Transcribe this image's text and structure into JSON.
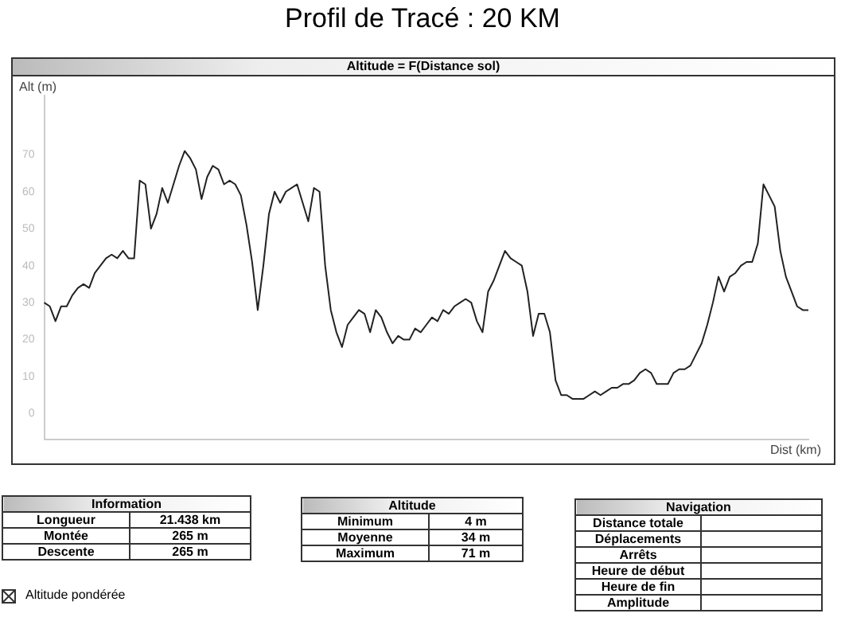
{
  "chart_data": {
    "type": "line",
    "title": "Profil de Tracé : 20 KM",
    "subtitle": "Altitude = F(Distance sol)",
    "ylabel": "Alt (m)",
    "xlabel": "Dist (km)",
    "categories": [
      null,
      null,
      null,
      null,
      null,
      null,
      null,
      null,
      null,
      null,
      null,
      null,
      null,
      null,
      null,
      null,
      null,
      null,
      null,
      null,
      null,
      null,
      null,
      null,
      null,
      null,
      null,
      null,
      null,
      null,
      null,
      null,
      null,
      null,
      null,
      null,
      null,
      null,
      null,
      null,
      null,
      null,
      null,
      null,
      null,
      null,
      null,
      null,
      null,
      null,
      null,
      null,
      null,
      null,
      null,
      null,
      null,
      null,
      null,
      null,
      null,
      null,
      null,
      null,
      null,
      null,
      null,
      null,
      null,
      null,
      null,
      null,
      null,
      null,
      null,
      null,
      null,
      null,
      null,
      null,
      null,
      null,
      null,
      null,
      null,
      null,
      null,
      null,
      null,
      null,
      null,
      null,
      null,
      null,
      null,
      null,
      null,
      null,
      null,
      null,
      null,
      null,
      null,
      null,
      null,
      null,
      null,
      null,
      null,
      null,
      null,
      null,
      null,
      null,
      null,
      null,
      null,
      null,
      null,
      null,
      null,
      null,
      null,
      null,
      null,
      null,
      null,
      null,
      null,
      null,
      null,
      null,
      null,
      null,
      null,
      null,
      null
    ],
    "series": [
      {
        "color": "#222222",
        "values": [
          30,
          29,
          25,
          29,
          29,
          32,
          34,
          35,
          34,
          38,
          40,
          42,
          43,
          42,
          44,
          42,
          42,
          63,
          62,
          50,
          54,
          61,
          57,
          62,
          67,
          71,
          69,
          66,
          58,
          64,
          67,
          66,
          62,
          63,
          62,
          59,
          51,
          41,
          28,
          40,
          54,
          60,
          57,
          60,
          61,
          62,
          57,
          52,
          61,
          60,
          40,
          28,
          22,
          18,
          24,
          26,
          28,
          27,
          22,
          28,
          26,
          22,
          19,
          21,
          20,
          20,
          23,
          22,
          24,
          26,
          25,
          28,
          27,
          29,
          30,
          31,
          30,
          25,
          22,
          33,
          36,
          40,
          44,
          42,
          41,
          40,
          33,
          21,
          27,
          27,
          22,
          9,
          5,
          5,
          4,
          4,
          4,
          5,
          6,
          5,
          6,
          7,
          7,
          8,
          8,
          9,
          11,
          12,
          11,
          8,
          8,
          8,
          11,
          12,
          12,
          13,
          16,
          19,
          24,
          30,
          37,
          33,
          37,
          38,
          40,
          41,
          41,
          46,
          62,
          59,
          56,
          44,
          37,
          33,
          29,
          28,
          28
        ]
      }
    ],
    "ylim": [
      -7,
      86
    ],
    "yticks": [
      0,
      10,
      20,
      30,
      40,
      50,
      60,
      70
    ],
    "tick_labels": "y",
    "grid": false,
    "marker": "none",
    "line_style": "solid",
    "annotations": [
      "Information",
      "Longueur",
      "21.438 km",
      "Montée",
      "265 m",
      "Descente",
      "265 m",
      "Altitude",
      "Minimum",
      "4 m",
      "Moyenne",
      "34 m",
      "Maximum",
      "71 m",
      "Navigation",
      "Distance totale",
      "Déplacements",
      "Arrêts",
      "Heure de début",
      "Heure de fin",
      "Amplitude",
      "Altitude pondérée"
    ]
  }
}
